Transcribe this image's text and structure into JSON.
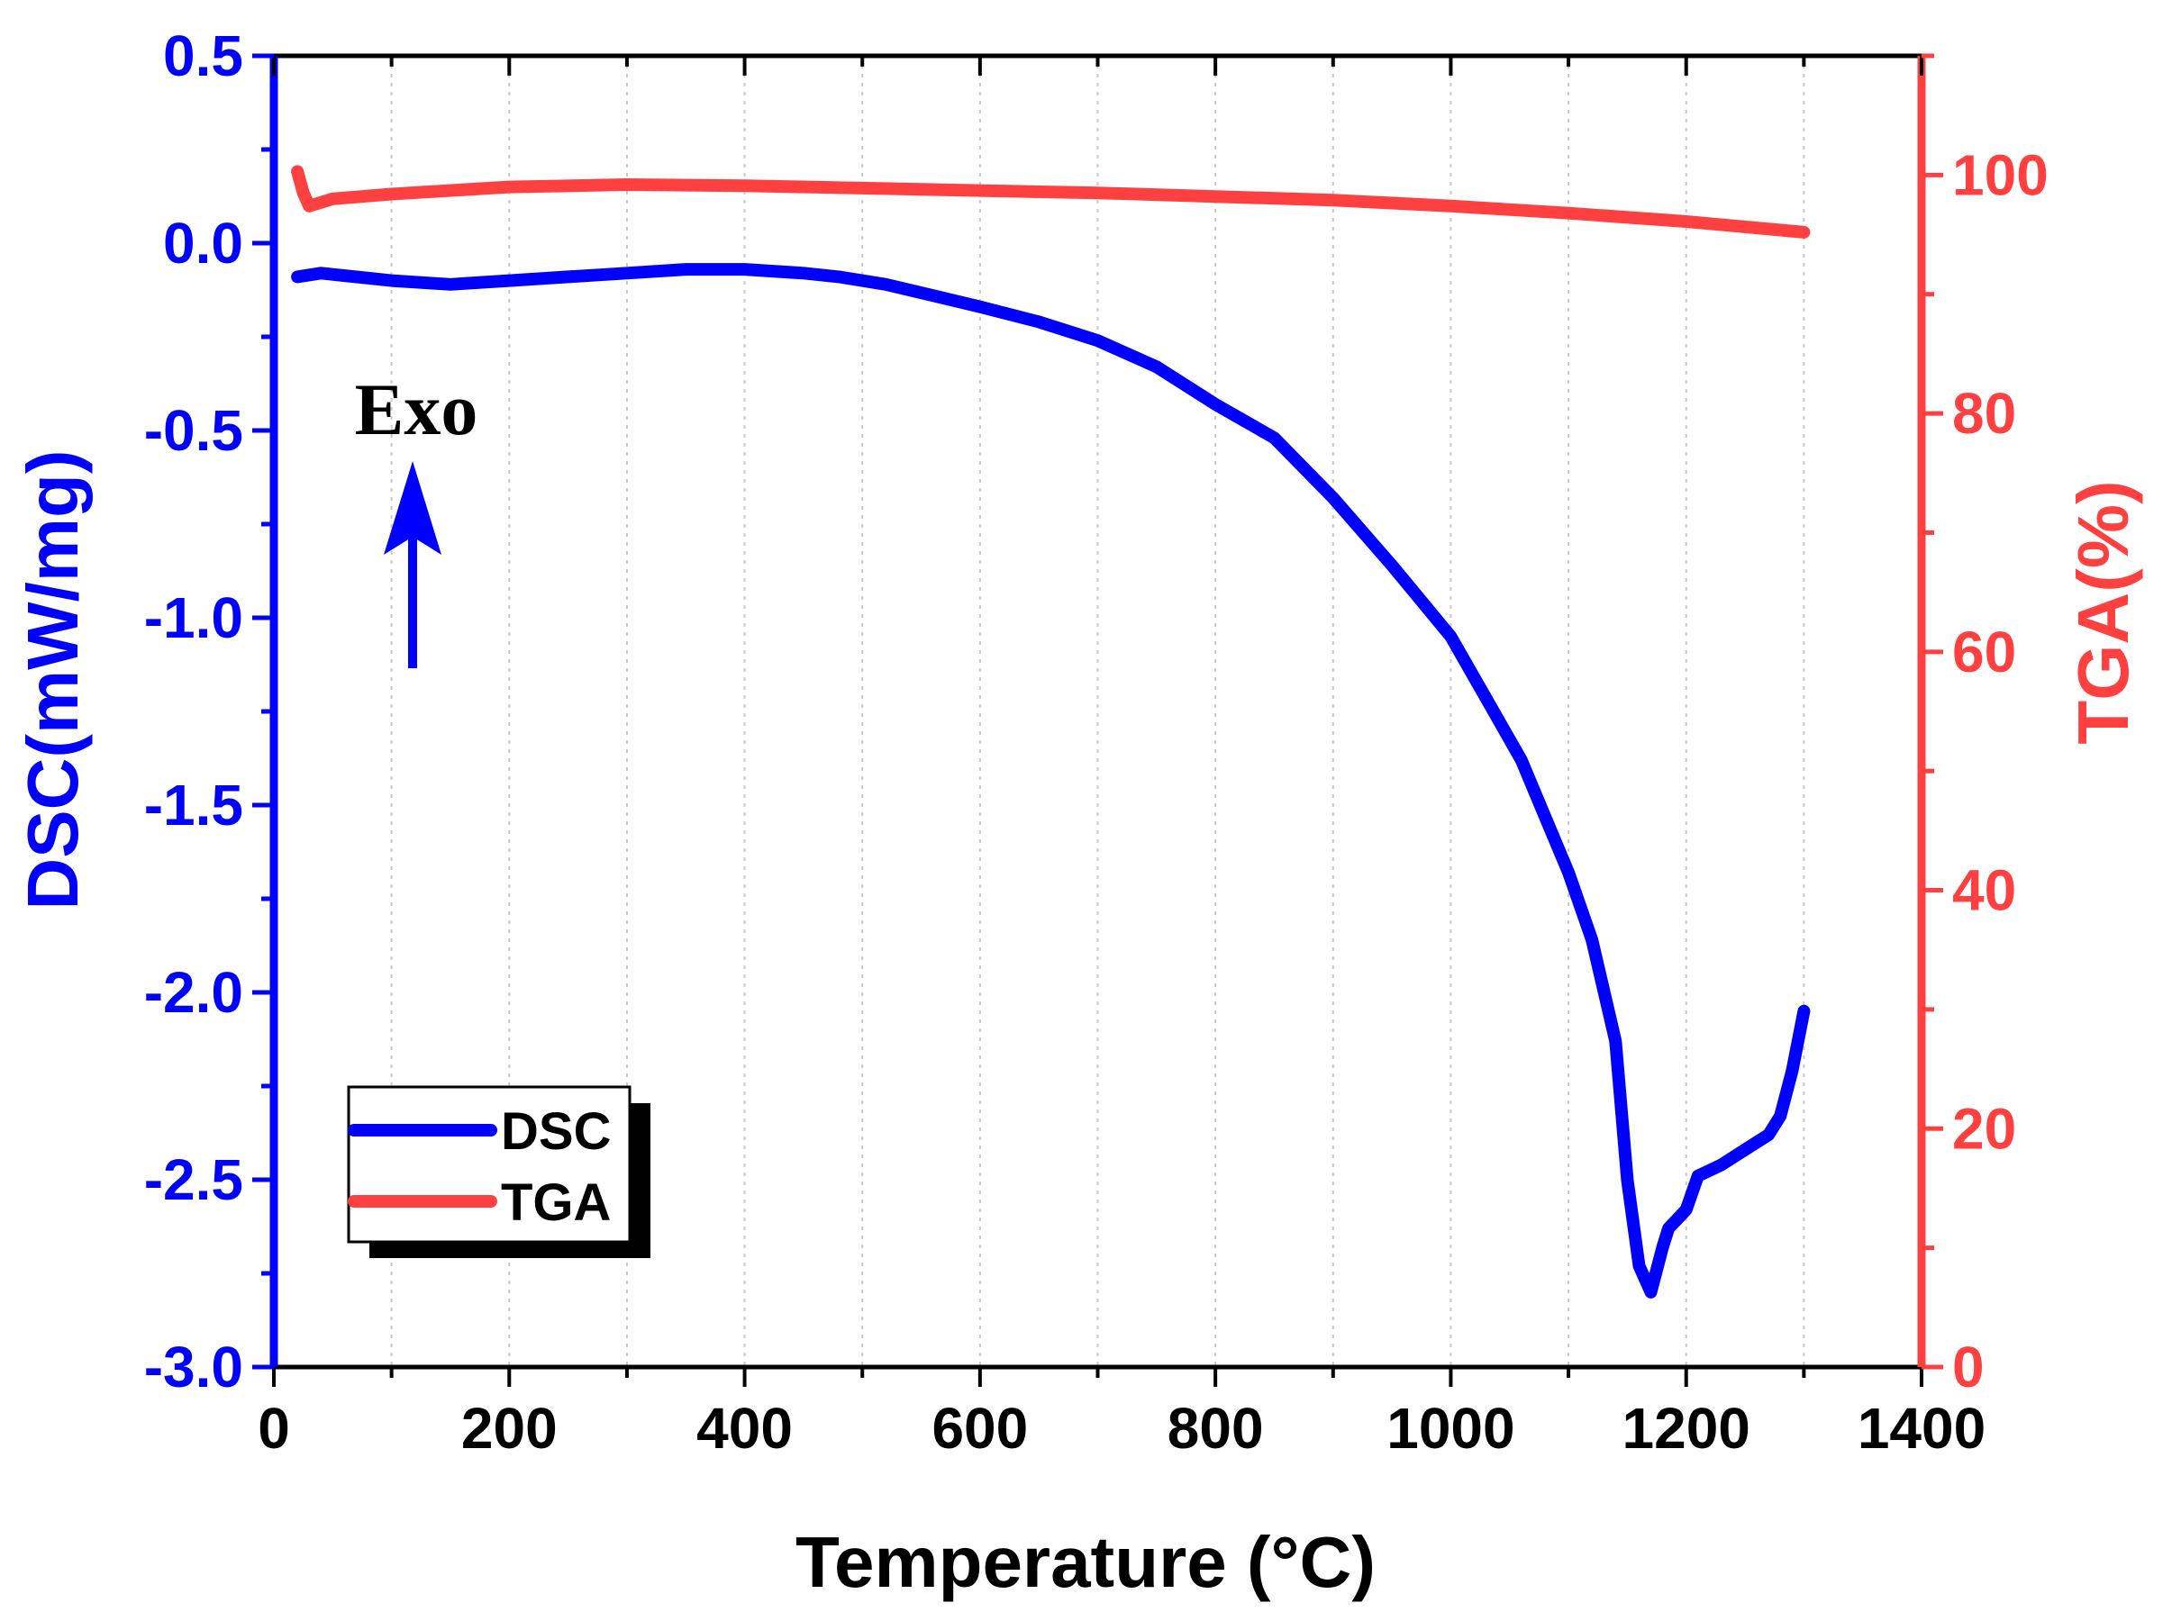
{
  "chart_data": {
    "type": "line",
    "dual_axis": true,
    "xlabel": "Temperature (°C)",
    "xlim": [
      0,
      1400
    ],
    "xticks": [
      0,
      200,
      400,
      600,
      800,
      1000,
      1200,
      1400
    ],
    "y_left": {
      "label": "DSC(mW/mg)",
      "lim": [
        -3.0,
        0.5
      ],
      "ticks": [
        0.5,
        0.0,
        -0.5,
        -1.0,
        -1.5,
        -2.0,
        -2.5,
        -3.0
      ],
      "tick_labels": [
        "0.5",
        "0.0",
        "-0.5",
        "-1.0",
        "-1.5",
        "-2.0",
        "-2.5",
        "-3.0"
      ],
      "color": "#0000ff"
    },
    "y_right": {
      "label": "TGA(%)",
      "lim": [
        0,
        110
      ],
      "ticks": [
        0,
        20,
        40,
        60,
        80,
        100
      ],
      "tick_labels": [
        "0",
        "20",
        "40",
        "60",
        "80",
        "100"
      ],
      "color": "#ff4040"
    },
    "grid": "vertical-dotted",
    "series": [
      {
        "name": "DSC",
        "axis": "left",
        "color": "#0000ff",
        "x": [
          20,
          40,
          100,
          150,
          200,
          250,
          300,
          350,
          400,
          450,
          480,
          520,
          560,
          600,
          650,
          700,
          750,
          800,
          850,
          900,
          950,
          1000,
          1040,
          1060,
          1080,
          1100,
          1120,
          1140,
          1150,
          1160,
          1170,
          1180,
          1185,
          1200,
          1210,
          1230,
          1250,
          1270,
          1280,
          1290,
          1300
        ],
        "y": [
          -0.09,
          -0.08,
          -0.1,
          -0.11,
          -0.1,
          -0.09,
          -0.08,
          -0.07,
          -0.07,
          -0.08,
          -0.09,
          -0.11,
          -0.14,
          -0.17,
          -0.21,
          -0.26,
          -0.33,
          -0.43,
          -0.52,
          -0.68,
          -0.86,
          -1.05,
          -1.27,
          -1.38,
          -1.53,
          -1.68,
          -1.86,
          -2.13,
          -2.5,
          -2.73,
          -2.8,
          -2.68,
          -2.63,
          -2.58,
          -2.49,
          -2.46,
          -2.42,
          -2.38,
          -2.33,
          -2.21,
          -2.05
        ]
      },
      {
        "name": "TGA",
        "axis": "right",
        "color": "#ff4040",
        "x": [
          20,
          25,
          30,
          50,
          100,
          200,
          300,
          400,
          500,
          600,
          700,
          800,
          900,
          1000,
          1100,
          1200,
          1300
        ],
        "y": [
          100.3,
          98.5,
          97.4,
          98.0,
          98.4,
          99.0,
          99.2,
          99.1,
          98.9,
          98.7,
          98.5,
          98.2,
          97.9,
          97.4,
          96.8,
          96.1,
          95.2
        ]
      }
    ],
    "legend": {
      "position": "bottom-left",
      "entries": [
        "DSC",
        "TGA"
      ]
    },
    "annotation": {
      "text": "Exo",
      "arrow": "up",
      "color_text": "#000000",
      "color_arrow": "#0000ff"
    }
  }
}
